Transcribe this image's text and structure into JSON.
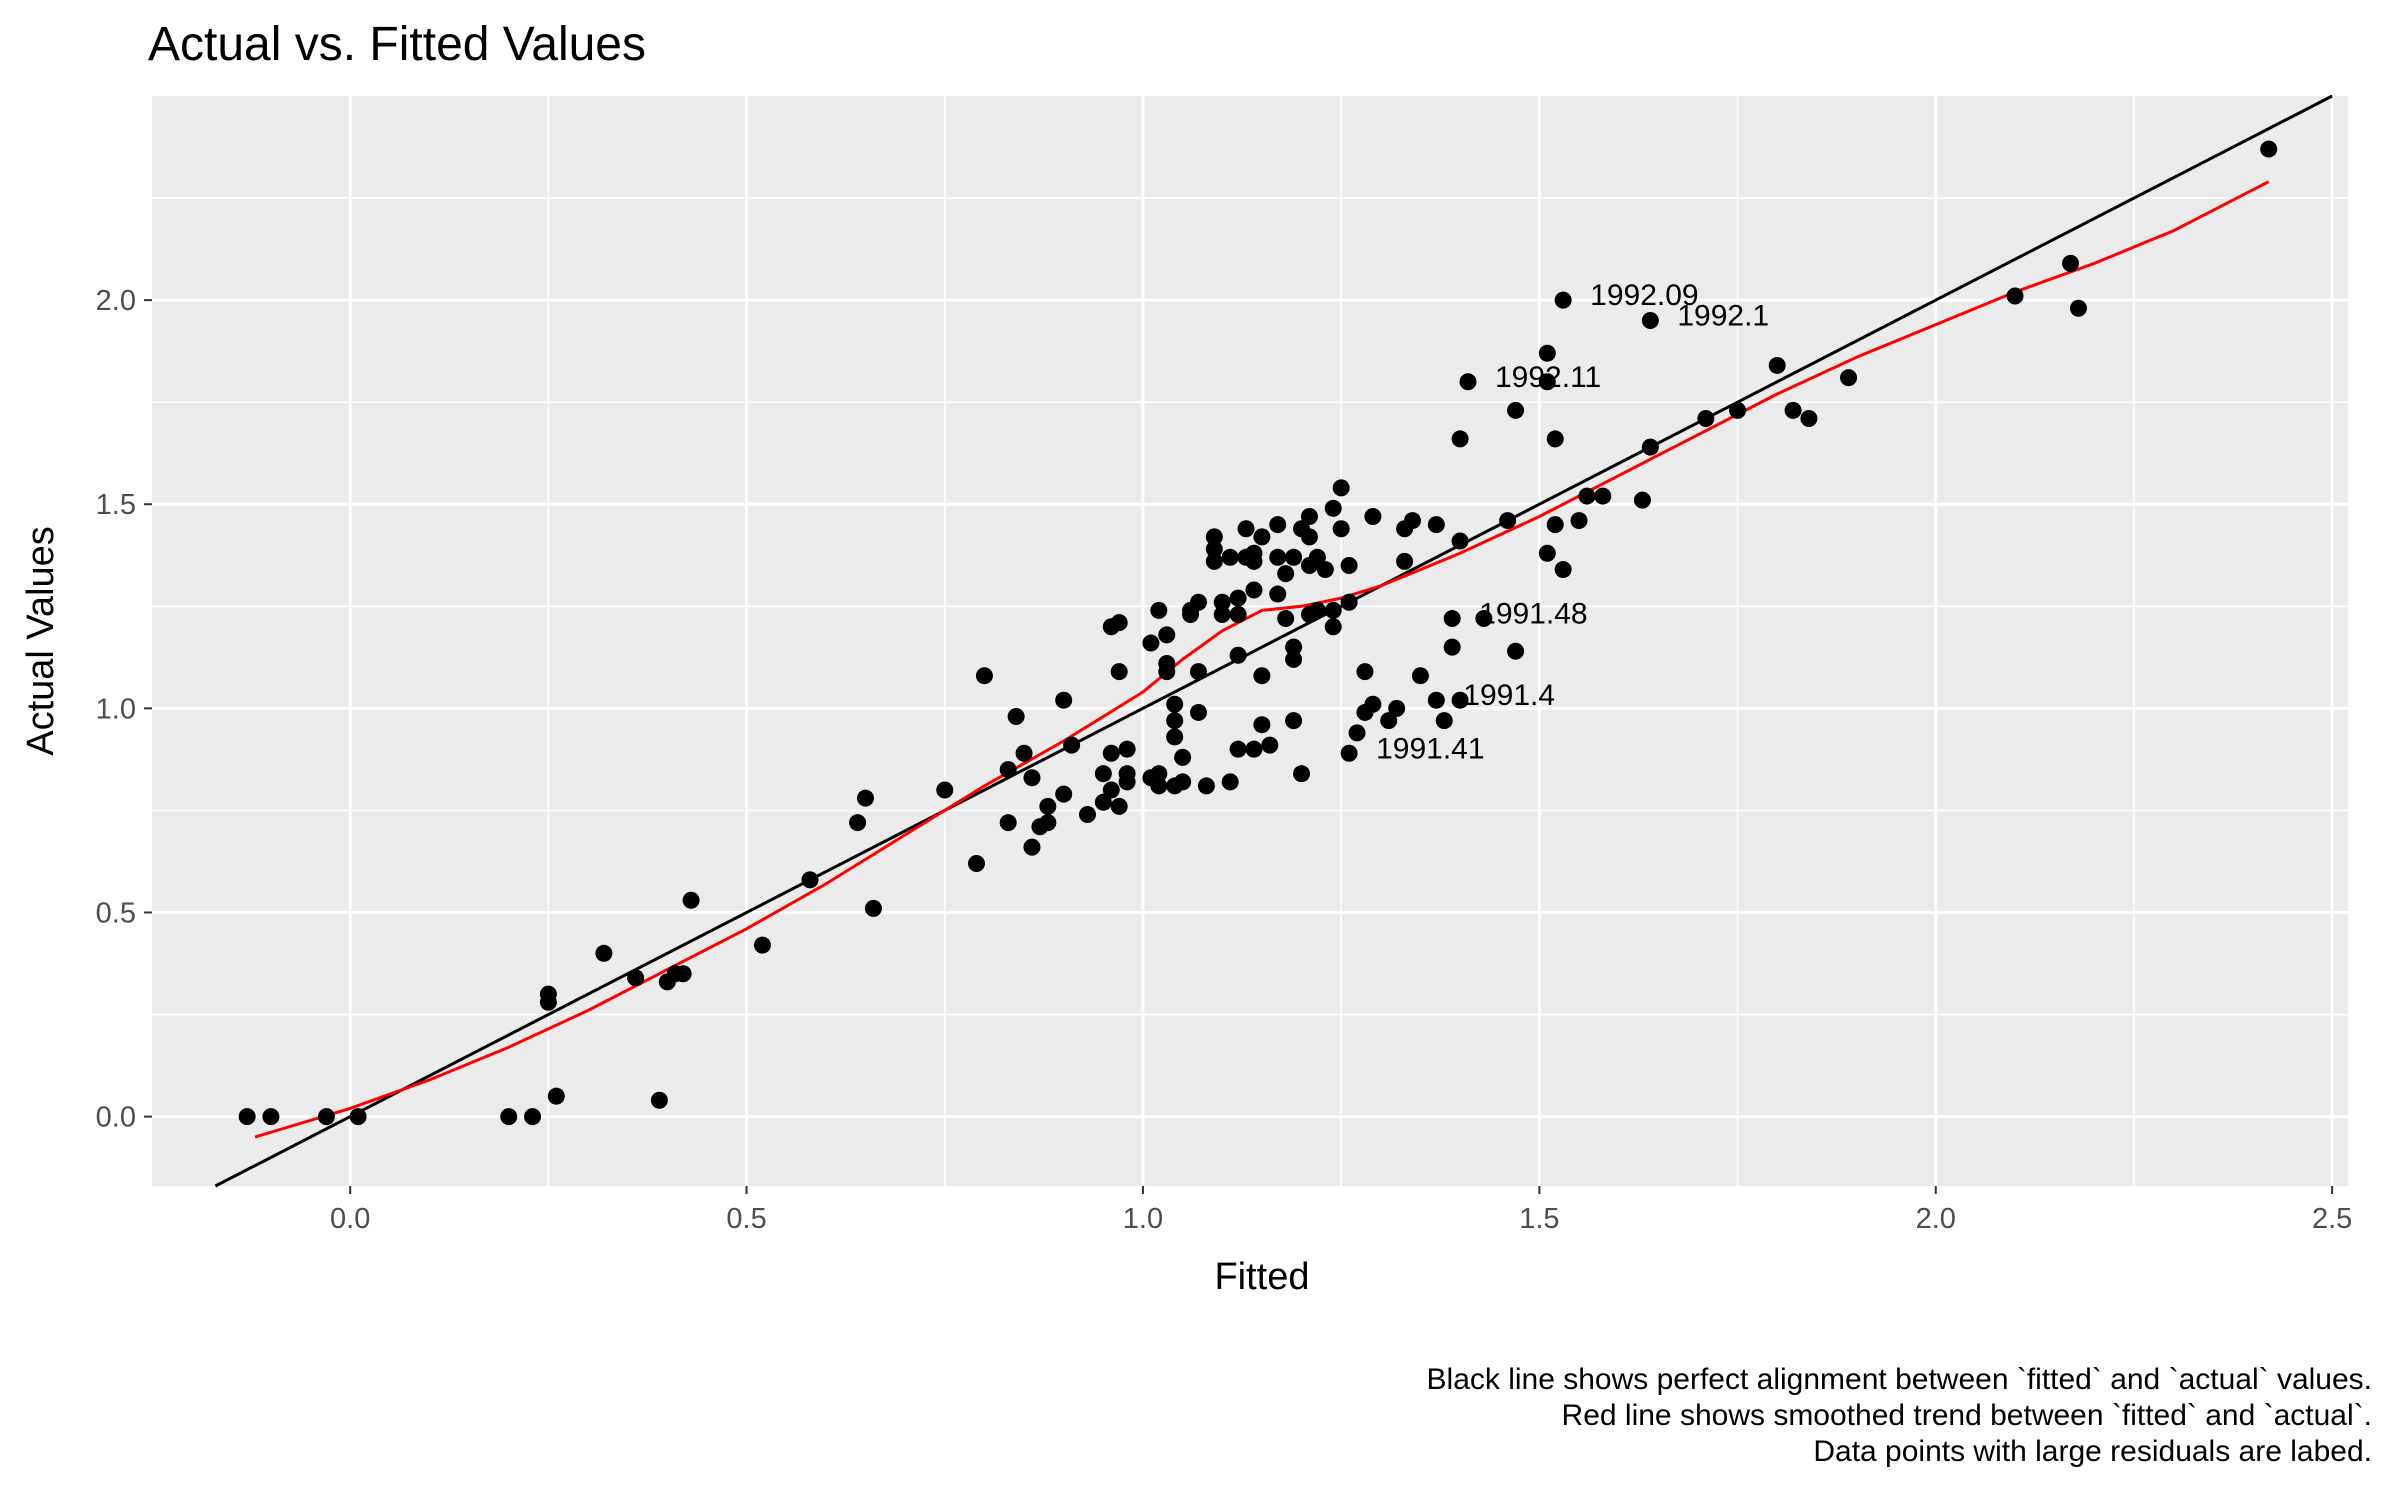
{
  "chart_data": {
    "type": "scatter",
    "title": "Actual vs. Fitted Values",
    "xlabel": "Fitted",
    "ylabel": "Actual Values",
    "xlim": [
      -0.25,
      2.52
    ],
    "ylim": [
      -0.17,
      2.5
    ],
    "x_ticks": [
      0.0,
      0.5,
      1.0,
      1.5,
      2.0,
      2.5
    ],
    "x_tick_labels": [
      "0.0",
      "0.5",
      "1.0",
      "1.5",
      "2.0",
      "2.5"
    ],
    "y_ticks": [
      0.0,
      0.5,
      1.0,
      1.5,
      2.0
    ],
    "y_tick_labels": [
      "0.0",
      "0.5",
      "1.0",
      "1.5",
      "2.0"
    ],
    "grid": true,
    "background": "#ebebeb",
    "colors": {
      "points": "#000000",
      "reference_line": "#000000",
      "smooth_line": "#ff0000",
      "grid": "#ffffff"
    },
    "reference_line": {
      "slope": 1,
      "intercept": 0
    },
    "smooth_line": {
      "x": [
        -0.12,
        0.0,
        0.1,
        0.2,
        0.3,
        0.4,
        0.5,
        0.6,
        0.7,
        0.8,
        0.9,
        1.0,
        1.05,
        1.1,
        1.15,
        1.2,
        1.25,
        1.3,
        1.4,
        1.5,
        1.6,
        1.7,
        1.8,
        1.9,
        2.0,
        2.1,
        2.2,
        2.3,
        2.42
      ],
      "y": [
        -0.05,
        0.02,
        0.09,
        0.17,
        0.26,
        0.36,
        0.46,
        0.57,
        0.69,
        0.81,
        0.92,
        1.04,
        1.12,
        1.19,
        1.24,
        1.25,
        1.27,
        1.3,
        1.38,
        1.47,
        1.57,
        1.67,
        1.77,
        1.86,
        1.94,
        2.02,
        2.09,
        2.17,
        2.29
      ]
    },
    "points": [
      [
        -0.13,
        0.0
      ],
      [
        -0.1,
        0.0
      ],
      [
        -0.03,
        0.0
      ],
      [
        0.01,
        0.0
      ],
      [
        0.2,
        0.0
      ],
      [
        0.23,
        0.0
      ],
      [
        0.26,
        0.05
      ],
      [
        0.39,
        0.04
      ],
      [
        0.25,
        0.28
      ],
      [
        0.25,
        0.3
      ],
      [
        0.32,
        0.4
      ],
      [
        0.36,
        0.34
      ],
      [
        0.4,
        0.33
      ],
      [
        0.41,
        0.35
      ],
      [
        0.42,
        0.35
      ],
      [
        0.43,
        0.53
      ],
      [
        0.52,
        0.42
      ],
      [
        0.58,
        0.58
      ],
      [
        0.64,
        0.72
      ],
      [
        0.65,
        0.78
      ],
      [
        0.66,
        0.51
      ],
      [
        0.75,
        0.8
      ],
      [
        0.79,
        0.62
      ],
      [
        0.8,
        1.08
      ],
      [
        0.83,
        0.85
      ],
      [
        0.84,
        0.98
      ],
      [
        0.83,
        0.72
      ],
      [
        0.85,
        0.89
      ],
      [
        0.86,
        0.66
      ],
      [
        0.86,
        0.83
      ],
      [
        0.87,
        0.71
      ],
      [
        0.88,
        0.76
      ],
      [
        0.88,
        0.72
      ],
      [
        0.9,
        0.79
      ],
      [
        0.9,
        1.02
      ],
      [
        0.91,
        0.91
      ],
      [
        0.93,
        0.74
      ],
      [
        0.95,
        0.84
      ],
      [
        0.95,
        0.77
      ],
      [
        0.96,
        0.89
      ],
      [
        0.96,
        0.8
      ],
      [
        0.97,
        0.76
      ],
      [
        0.96,
        1.2
      ],
      [
        0.97,
        1.21
      ],
      [
        0.97,
        1.09
      ],
      [
        0.98,
        0.9
      ],
      [
        0.98,
        0.84
      ],
      [
        0.98,
        0.82
      ],
      [
        1.01,
        1.16
      ],
      [
        1.01,
        0.83
      ],
      [
        1.02,
        1.24
      ],
      [
        1.02,
        0.81
      ],
      [
        1.02,
        0.84
      ],
      [
        1.03,
        1.18
      ],
      [
        1.03,
        1.09
      ],
      [
        1.03,
        1.11
      ],
      [
        1.04,
        1.01
      ],
      [
        1.04,
        0.97
      ],
      [
        1.04,
        0.93
      ],
      [
        1.04,
        0.81
      ],
      [
        1.05,
        0.88
      ],
      [
        1.05,
        0.82
      ],
      [
        1.06,
        1.23
      ],
      [
        1.06,
        1.24
      ],
      [
        1.07,
        0.99
      ],
      [
        1.07,
        1.26
      ],
      [
        1.07,
        1.09
      ],
      [
        1.08,
        0.81
      ],
      [
        1.09,
        1.42
      ],
      [
        1.09,
        1.39
      ],
      [
        1.09,
        1.36
      ],
      [
        1.1,
        1.26
      ],
      [
        1.1,
        1.23
      ],
      [
        1.11,
        1.37
      ],
      [
        1.11,
        0.82
      ],
      [
        1.12,
        1.23
      ],
      [
        1.12,
        1.27
      ],
      [
        1.12,
        0.9
      ],
      [
        1.12,
        1.13
      ],
      [
        1.13,
        1.44
      ],
      [
        1.13,
        1.37
      ],
      [
        1.14,
        1.38
      ],
      [
        1.14,
        1.36
      ],
      [
        1.14,
        1.29
      ],
      [
        1.14,
        0.9
      ],
      [
        1.15,
        1.42
      ],
      [
        1.15,
        1.08
      ],
      [
        1.15,
        0.96
      ],
      [
        1.16,
        0.91
      ],
      [
        1.17,
        1.28
      ],
      [
        1.17,
        1.45
      ],
      [
        1.17,
        1.37
      ],
      [
        1.18,
        1.33
      ],
      [
        1.18,
        1.22
      ],
      [
        1.19,
        1.37
      ],
      [
        1.19,
        1.15
      ],
      [
        1.19,
        1.12
      ],
      [
        1.19,
        0.97
      ],
      [
        1.2,
        0.84
      ],
      [
        1.2,
        1.44
      ],
      [
        1.21,
        1.47
      ],
      [
        1.21,
        1.42
      ],
      [
        1.21,
        1.35
      ],
      [
        1.21,
        1.23
      ],
      [
        1.22,
        1.24
      ],
      [
        1.22,
        1.37
      ],
      [
        1.23,
        1.34
      ],
      [
        1.24,
        1.49
      ],
      [
        1.24,
        1.2
      ],
      [
        1.24,
        1.24
      ],
      [
        1.25,
        1.44
      ],
      [
        1.25,
        1.54
      ],
      [
        1.26,
        1.26
      ],
      [
        1.26,
        1.35
      ],
      [
        1.26,
        0.89
      ],
      [
        1.27,
        0.94
      ],
      [
        1.28,
        1.09
      ],
      [
        1.28,
        0.99
      ],
      [
        1.29,
        1.47
      ],
      [
        1.29,
        1.01
      ],
      [
        1.31,
        0.97
      ],
      [
        1.32,
        1.0
      ],
      [
        1.33,
        1.44
      ],
      [
        1.33,
        1.36
      ],
      [
        1.34,
        1.46
      ],
      [
        1.35,
        1.08
      ],
      [
        1.37,
        1.45
      ],
      [
        1.37,
        1.02
      ],
      [
        1.38,
        0.97
      ],
      [
        1.39,
        1.22
      ],
      [
        1.39,
        1.15
      ],
      [
        1.4,
        1.66
      ],
      [
        1.4,
        1.41
      ],
      [
        1.4,
        1.02
      ],
      [
        1.41,
        1.8
      ],
      [
        1.43,
        1.22
      ],
      [
        1.46,
        1.46
      ],
      [
        1.47,
        1.73
      ],
      [
        1.47,
        1.14
      ],
      [
        1.51,
        1.87
      ],
      [
        1.51,
        1.8
      ],
      [
        1.51,
        1.38
      ],
      [
        1.52,
        1.45
      ],
      [
        1.52,
        1.66
      ],
      [
        1.53,
        2.0
      ],
      [
        1.53,
        1.34
      ],
      [
        1.55,
        1.46
      ],
      [
        1.56,
        1.52
      ],
      [
        1.58,
        1.52
      ],
      [
        1.63,
        1.51
      ],
      [
        1.64,
        1.95
      ],
      [
        1.64,
        1.64
      ],
      [
        1.71,
        1.71
      ],
      [
        1.75,
        1.73
      ],
      [
        1.8,
        1.84
      ],
      [
        1.82,
        1.73
      ],
      [
        1.84,
        1.71
      ],
      [
        1.89,
        1.81
      ],
      [
        2.1,
        2.01
      ],
      [
        2.17,
        2.09
      ],
      [
        2.18,
        1.98
      ],
      [
        2.42,
        2.37
      ]
    ],
    "labeled_points": [
      {
        "label": "1992.09",
        "x": 1.53,
        "y": 2.0
      },
      {
        "label": "1992.1",
        "x": 1.64,
        "y": 1.95
      },
      {
        "label": "1992.11",
        "x": 1.41,
        "y": 1.8
      },
      {
        "label": "1991.48",
        "x": 1.39,
        "y": 1.22
      },
      {
        "label": "1991.4",
        "x": 1.37,
        "y": 1.02
      },
      {
        "label": "1991.41",
        "x": 1.26,
        "y": 0.89
      }
    ],
    "caption": [
      "Black line shows perfect alignment between `fitted` and `actual` values.",
      "Red line shows smoothed trend between `fitted` and `actual`.",
      "Data points with large residuals are labed."
    ]
  }
}
